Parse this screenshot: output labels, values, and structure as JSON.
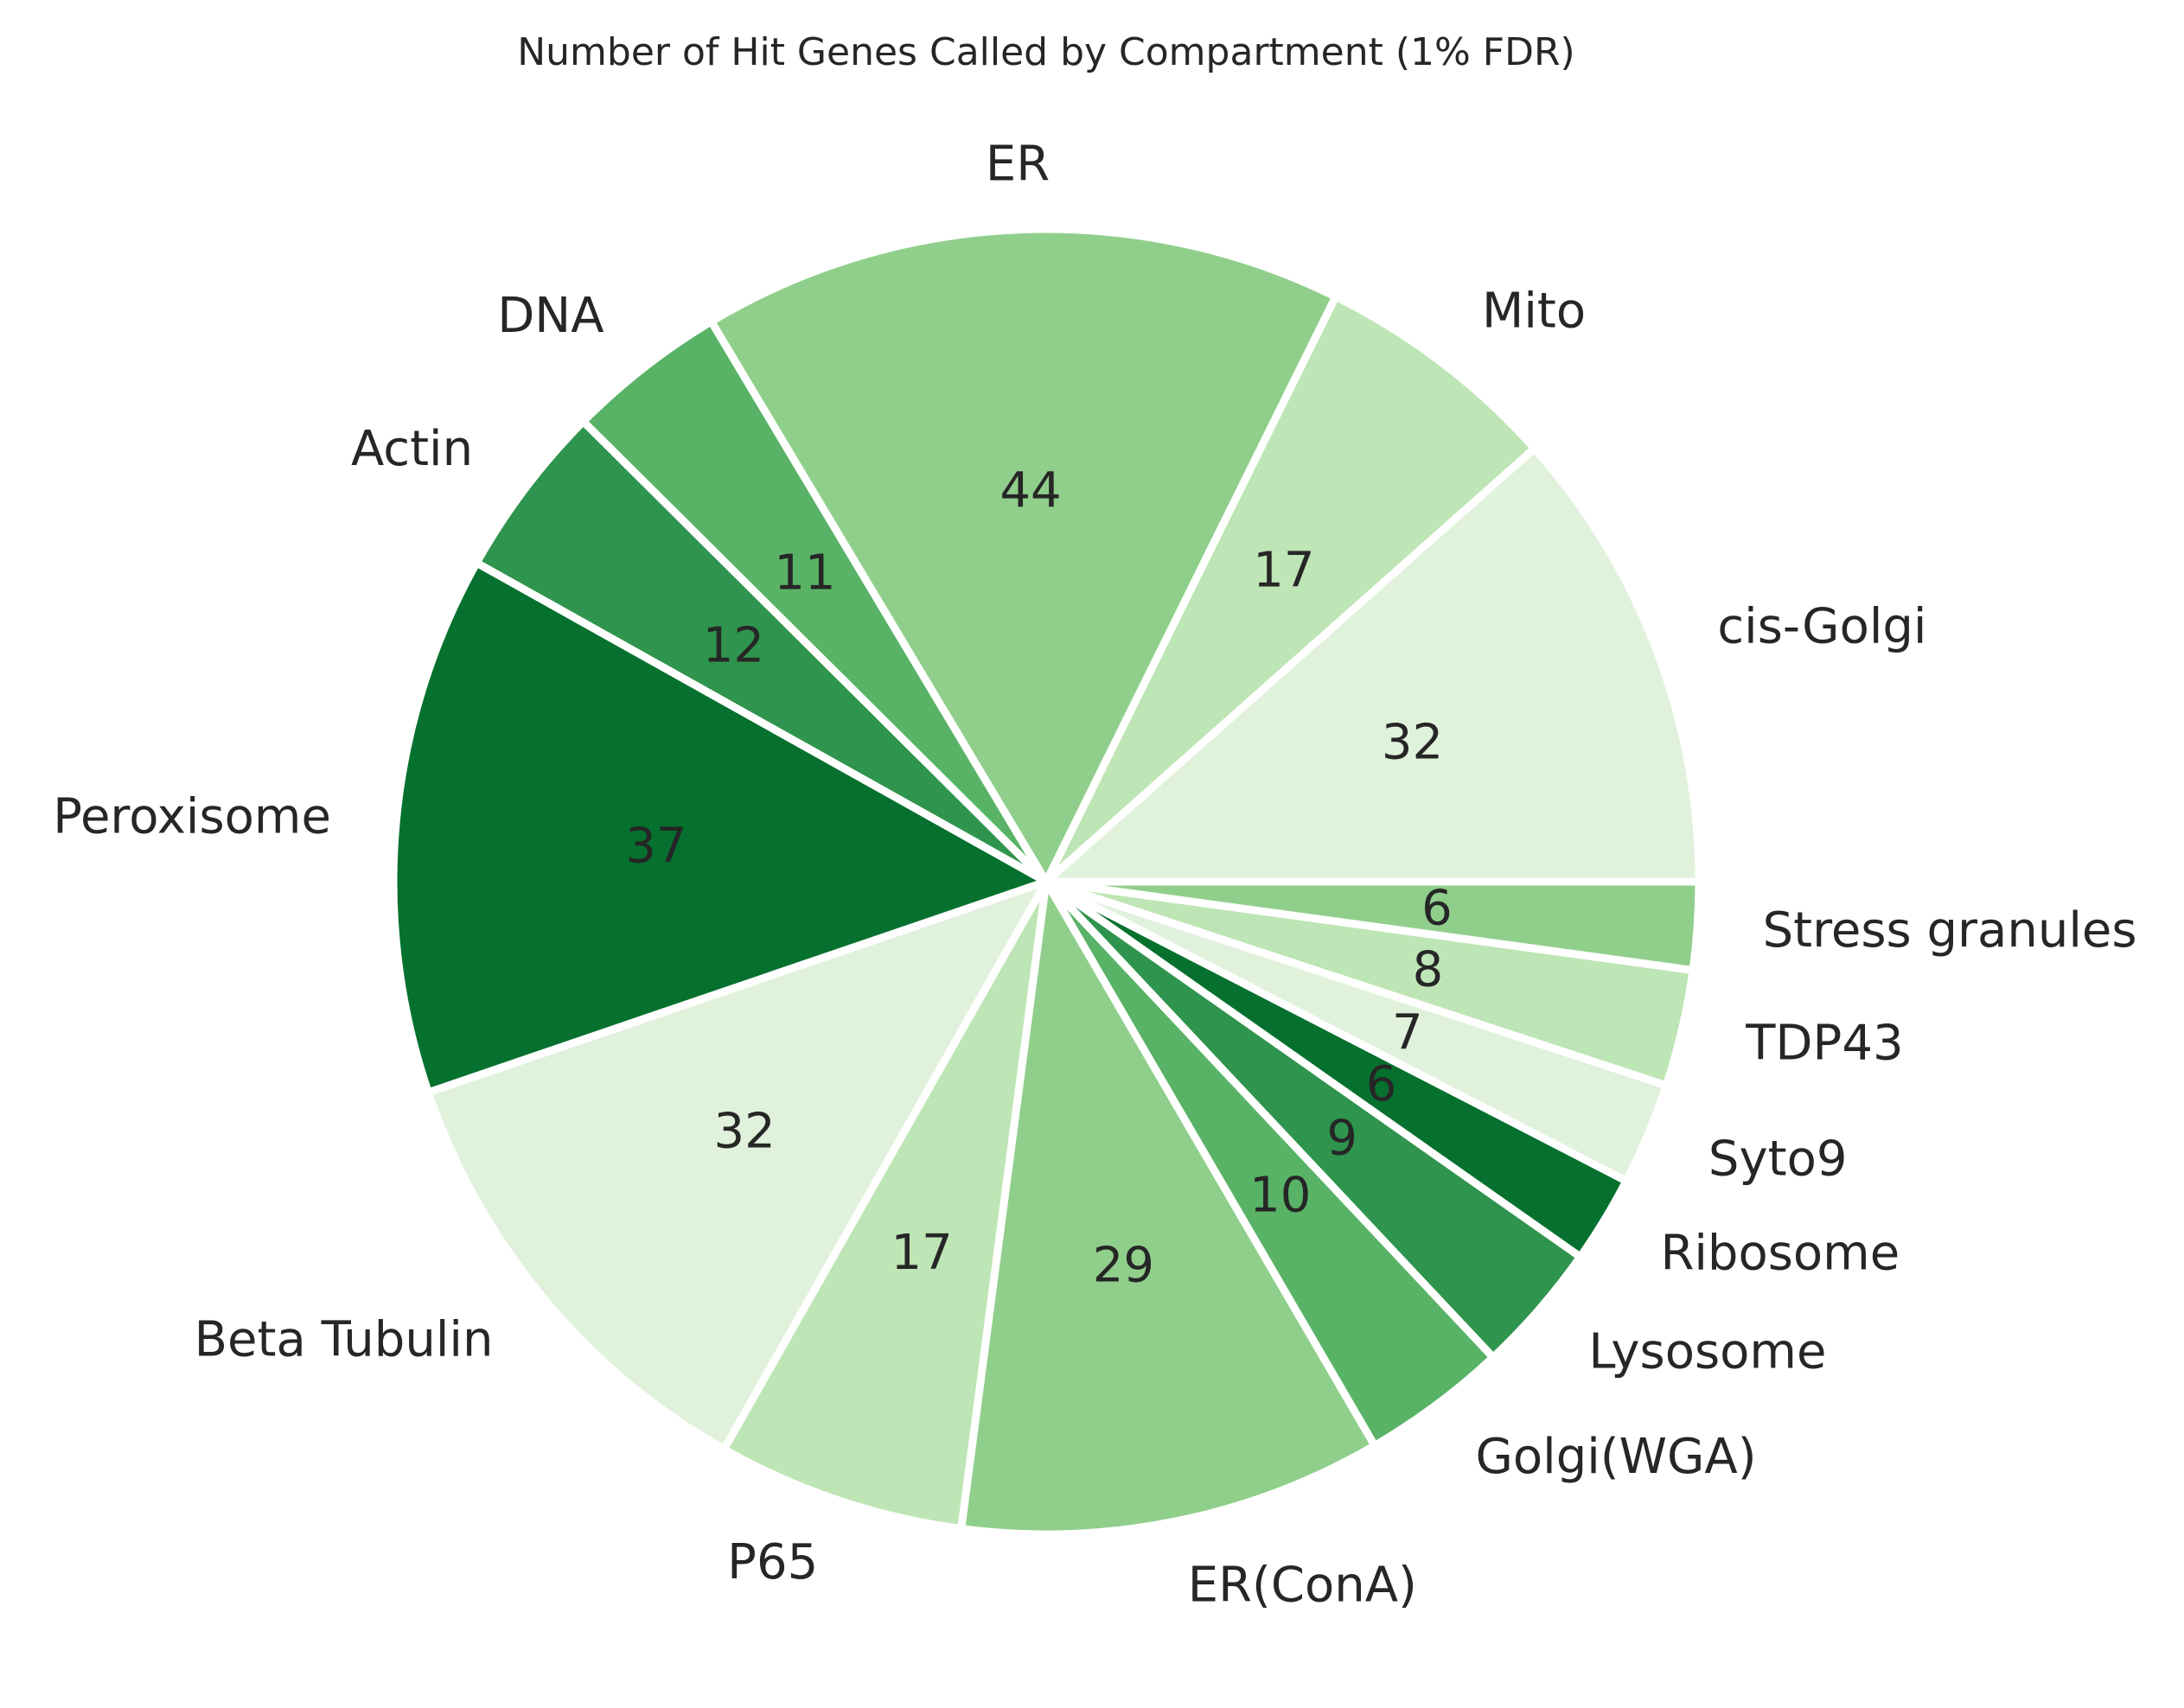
{
  "chart_data": {
    "type": "pie",
    "title": "Number of Hit Genes Called by Compartment (1% FDR)",
    "start_angle_deg": 0,
    "direction": "counterclockwise",
    "slices": [
      {
        "label": "cis-Golgi",
        "value": 32,
        "color": "#e0f2db"
      },
      {
        "label": "Mito",
        "value": 17,
        "color": "#bee5b5"
      },
      {
        "label": "ER",
        "value": 44,
        "color": "#8fcf8b"
      },
      {
        "label": "DNA",
        "value": 11,
        "color": "#58b366"
      },
      {
        "label": "Actin",
        "value": 12,
        "color": "#2f944d"
      },
      {
        "label": "Peroxisome",
        "value": 37,
        "color": "#06712f"
      },
      {
        "label": "Beta Tubulin",
        "value": 32,
        "color": "#e0f2db"
      },
      {
        "label": "P65",
        "value": 17,
        "color": "#bee5b5"
      },
      {
        "label": "ER(ConA)",
        "value": 29,
        "color": "#8fcf8b"
      },
      {
        "label": "Golgi(WGA)",
        "value": 10,
        "color": "#58b366"
      },
      {
        "label": "Lysosome",
        "value": 9,
        "color": "#2f944d"
      },
      {
        "label": "Ribosome",
        "value": 6,
        "color": "#06712f"
      },
      {
        "label": "Syto9",
        "value": 7,
        "color": "#e0f2db"
      },
      {
        "label": "TDP43",
        "value": 8,
        "color": "#bee5b5"
      },
      {
        "label": "Stress granules",
        "value": 6,
        "color": "#8fcf8b"
      }
    ]
  }
}
